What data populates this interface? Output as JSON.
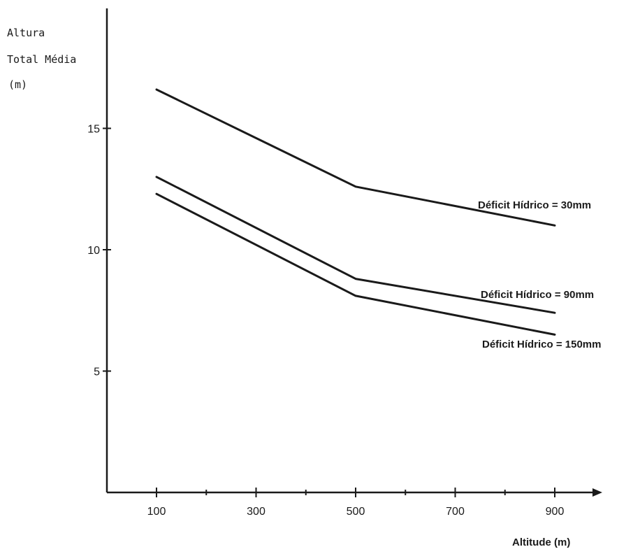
{
  "chart_data": {
    "type": "line",
    "ylabel_lines": [
      "Altura",
      "Total Média",
      "(m)"
    ],
    "xlabel": "Altitude (m)",
    "x_ticks": [
      100,
      300,
      500,
      700,
      900
    ],
    "y_ticks": [
      5,
      10,
      15
    ],
    "xlim": [
      0,
      1000
    ],
    "ylim": [
      0,
      19
    ],
    "grid": false,
    "series": [
      {
        "name": "Déficit Hídrico = 30mm",
        "x": [
          100,
          500,
          900
        ],
        "y": [
          16.6,
          12.6,
          11.0
        ]
      },
      {
        "name": "Déficit Hídrico = 90mm",
        "x": [
          100,
          500,
          900
        ],
        "y": [
          13.0,
          8.8,
          7.4
        ]
      },
      {
        "name": "Déficit Hídrico = 150mm",
        "x": [
          100,
          500,
          900
        ],
        "y": [
          12.3,
          8.1,
          6.5
        ]
      }
    ]
  }
}
